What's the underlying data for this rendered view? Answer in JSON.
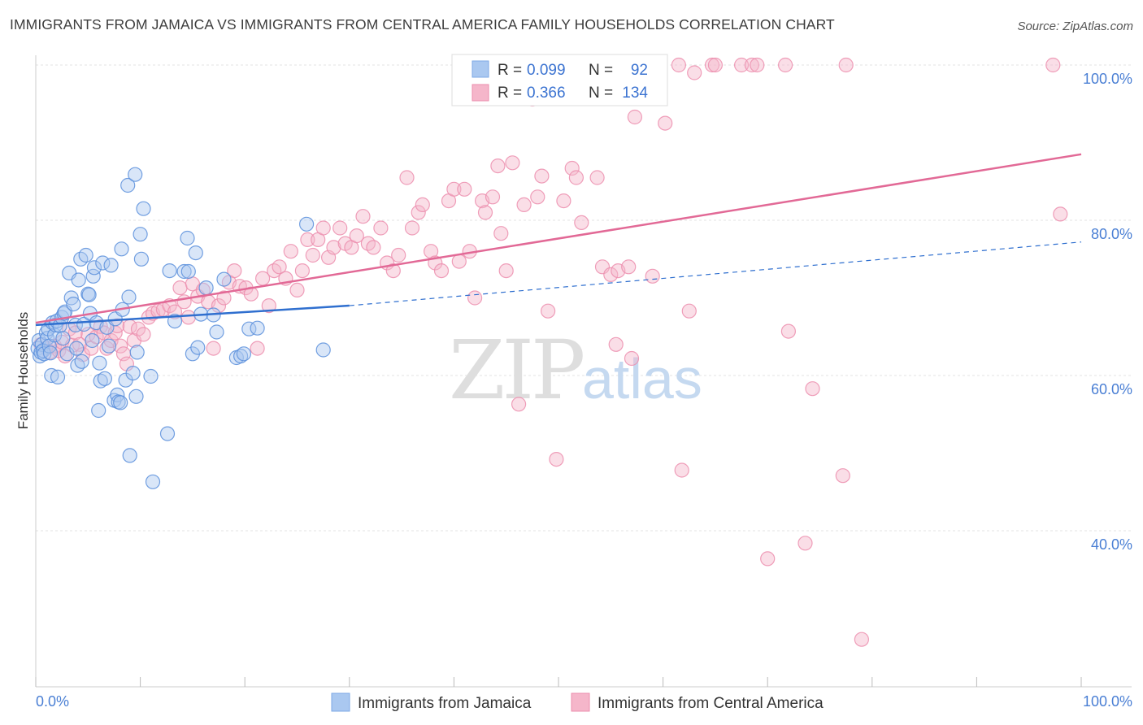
{
  "title": "IMMIGRANTS FROM JAMAICA VS IMMIGRANTS FROM CENTRAL AMERICA FAMILY HOUSEHOLDS CORRELATION CHART",
  "source": "Source: ZipAtlas.com",
  "watermark": {
    "part1": "ZIP",
    "part2": "atlas"
  },
  "legend": {
    "r_label": "R =",
    "n_label": "N =",
    "rows": [
      {
        "r": "0.099",
        "n": "92"
      },
      {
        "r": "0.366",
        "n": "134"
      }
    ]
  },
  "chart_data": {
    "type": "scatter",
    "title": "IMMIGRANTS FROM JAMAICA VS IMMIGRANTS FROM CENTRAL AMERICA FAMILY HOUSEHOLDS CORRELATION CHART",
    "xlabel": "",
    "ylabel": "Family Households",
    "xlim": [
      0,
      100
    ],
    "ylim": [
      22,
      102
    ],
    "x_tick_labels": [
      "0.0%",
      "100.0%"
    ],
    "y_tick_labels": [
      "100.0%",
      "80.0%",
      "60.0%",
      "40.0%"
    ],
    "y_tick_values": [
      100,
      80,
      60,
      40
    ],
    "grid": true,
    "colors": {
      "jamaica_fill": "#aac8f0",
      "jamaica_line": "#2f6fcf",
      "central_fill": "#f5b6ca",
      "central_line": "#e26996"
    },
    "series": [
      {
        "name": "Immigrants from Jamaica",
        "r": 0.099,
        "n": 92,
        "trend": {
          "x0": 0,
          "y0": 66.5,
          "x1": 30,
          "y1": 69.0,
          "dash_to_x": 100,
          "dash_to_y": 77.2
        },
        "points": [
          [
            0.2,
            63.5
          ],
          [
            0.3,
            64.5
          ],
          [
            0.4,
            62.5
          ],
          [
            0.5,
            63
          ],
          [
            0.6,
            64
          ],
          [
            0.7,
            63.2
          ],
          [
            0.8,
            62.8
          ],
          [
            1,
            65.5
          ],
          [
            1.1,
            64.8
          ],
          [
            1.2,
            66
          ],
          [
            1.3,
            63.8
          ],
          [
            1.4,
            62.9
          ],
          [
            1.5,
            60
          ],
          [
            1.6,
            66.8
          ],
          [
            1.8,
            65.2
          ],
          [
            1.9,
            66.5
          ],
          [
            2,
            67
          ],
          [
            2.1,
            59.8
          ],
          [
            2.3,
            66.4
          ],
          [
            2.5,
            67.5
          ],
          [
            2.6,
            64.8
          ],
          [
            2.7,
            68
          ],
          [
            2.8,
            68.2
          ],
          [
            3,
            62.8
          ],
          [
            3.2,
            73.2
          ],
          [
            3.4,
            70
          ],
          [
            3.6,
            69.2
          ],
          [
            3.8,
            66.5
          ],
          [
            3.9,
            63.5
          ],
          [
            4,
            61.3
          ],
          [
            4.1,
            72.3
          ],
          [
            4.3,
            75
          ],
          [
            4.4,
            61.8
          ],
          [
            4.6,
            66.6
          ],
          [
            4.8,
            75.5
          ],
          [
            5,
            70.5
          ],
          [
            5.1,
            70.4
          ],
          [
            5.2,
            68
          ],
          [
            5.4,
            64.5
          ],
          [
            5.5,
            72.8
          ],
          [
            5.6,
            73.9
          ],
          [
            5.8,
            66.8
          ],
          [
            6,
            55.5
          ],
          [
            6.1,
            61.6
          ],
          [
            6.2,
            59.3
          ],
          [
            6.4,
            74.5
          ],
          [
            6.6,
            59.6
          ],
          [
            6.8,
            66.2
          ],
          [
            7,
            63.8
          ],
          [
            7.2,
            74.2
          ],
          [
            7.5,
            56.8
          ],
          [
            7.6,
            67.3
          ],
          [
            7.8,
            57.5
          ],
          [
            7.9,
            56.6
          ],
          [
            8.1,
            56.5
          ],
          [
            8.2,
            76.3
          ],
          [
            8.3,
            68.5
          ],
          [
            8.6,
            59.4
          ],
          [
            8.8,
            84.5
          ],
          [
            8.9,
            70.1
          ],
          [
            9,
            49.7
          ],
          [
            9.3,
            60.3
          ],
          [
            9.5,
            85.9
          ],
          [
            9.6,
            57.3
          ],
          [
            9.7,
            63
          ],
          [
            10,
            78.2
          ],
          [
            10.1,
            75
          ],
          [
            10.3,
            81.5
          ],
          [
            11,
            59.9
          ],
          [
            11.2,
            46.3
          ],
          [
            12.6,
            52.5
          ],
          [
            12.8,
            73.5
          ],
          [
            13.3,
            67
          ],
          [
            14.2,
            73.4
          ],
          [
            14.5,
            77.7
          ],
          [
            14.6,
            73.4
          ],
          [
            15,
            62.8
          ],
          [
            15.3,
            75.8
          ],
          [
            15.5,
            63.6
          ],
          [
            15.8,
            67.9
          ],
          [
            16.3,
            71.3
          ],
          [
            17,
            67.8
          ],
          [
            17.3,
            65.6
          ],
          [
            18,
            72.4
          ],
          [
            19.2,
            62.3
          ],
          [
            19.6,
            62.5
          ],
          [
            19.9,
            62.8
          ],
          [
            20.4,
            66
          ],
          [
            21.2,
            66.1
          ],
          [
            25.9,
            79.5
          ],
          [
            27.5,
            63.3
          ]
        ]
      },
      {
        "name": "Immigrants from Central America",
        "r": 0.366,
        "n": 134,
        "trend": {
          "x0": 0,
          "y0": 66.8,
          "x1": 100,
          "y1": 88.5
        },
        "points": [
          [
            0.5,
            64
          ],
          [
            1,
            63.5
          ],
          [
            1.3,
            63
          ],
          [
            1.8,
            63.8
          ],
          [
            2.2,
            63.2
          ],
          [
            2.5,
            64.3
          ],
          [
            2.8,
            62.5
          ],
          [
            3.2,
            66
          ],
          [
            3.5,
            63.9
          ],
          [
            3.8,
            65.5
          ],
          [
            4.2,
            64
          ],
          [
            4.5,
            62.7
          ],
          [
            5,
            65.3
          ],
          [
            5.3,
            63.5
          ],
          [
            5.8,
            65
          ],
          [
            6.2,
            66.3
          ],
          [
            6.5,
            65.5
          ],
          [
            6.8,
            63.5
          ],
          [
            7.2,
            64.5
          ],
          [
            7.6,
            65.5
          ],
          [
            7.8,
            66.4
          ],
          [
            8.1,
            63.8
          ],
          [
            8.4,
            62.8
          ],
          [
            8.7,
            61.5
          ],
          [
            9,
            66.3
          ],
          [
            9.4,
            64.5
          ],
          [
            9.8,
            66
          ],
          [
            10.3,
            65.3
          ],
          [
            10.8,
            67.5
          ],
          [
            11.2,
            68
          ],
          [
            11.7,
            68.3
          ],
          [
            12.2,
            68.5
          ],
          [
            12.8,
            69
          ],
          [
            13.3,
            68.2
          ],
          [
            13.8,
            71.3
          ],
          [
            14.2,
            69.5
          ],
          [
            14.6,
            67.5
          ],
          [
            15,
            71.8
          ],
          [
            15.5,
            70.2
          ],
          [
            16,
            71
          ],
          [
            16.5,
            69.5
          ],
          [
            17,
            63.5
          ],
          [
            17.5,
            69
          ],
          [
            18,
            70
          ],
          [
            18.5,
            72
          ],
          [
            19,
            73.5
          ],
          [
            19.5,
            71.5
          ],
          [
            20.1,
            71.3
          ],
          [
            20.6,
            70.5
          ],
          [
            21.2,
            63.5
          ],
          [
            21.7,
            72.5
          ],
          [
            22.3,
            69
          ],
          [
            22.8,
            73.5
          ],
          [
            23.3,
            74
          ],
          [
            23.9,
            72.5
          ],
          [
            24.4,
            76
          ],
          [
            25,
            71
          ],
          [
            25.5,
            73.5
          ],
          [
            26,
            77.5
          ],
          [
            26.5,
            75.5
          ],
          [
            27,
            77.5
          ],
          [
            27.5,
            79
          ],
          [
            28,
            75.2
          ],
          [
            28.5,
            76.5
          ],
          [
            29.1,
            79
          ],
          [
            29.6,
            77
          ],
          [
            30.2,
            76.5
          ],
          [
            30.7,
            78
          ],
          [
            31.3,
            80.5
          ],
          [
            31.8,
            77
          ],
          [
            32.3,
            76.5
          ],
          [
            33,
            79
          ],
          [
            33.6,
            74.5
          ],
          [
            34.2,
            73.5
          ],
          [
            34.7,
            75.5
          ],
          [
            35.5,
            85.5
          ],
          [
            36,
            79
          ],
          [
            36.6,
            81
          ],
          [
            37,
            82
          ],
          [
            37.8,
            76
          ],
          [
            38.2,
            74.5
          ],
          [
            38.8,
            73.5
          ],
          [
            39.5,
            82.5
          ],
          [
            40,
            84
          ],
          [
            40.5,
            74.7
          ],
          [
            41,
            84
          ],
          [
            41.5,
            76
          ],
          [
            42,
            70
          ],
          [
            42.7,
            82.5
          ],
          [
            43,
            81
          ],
          [
            43.7,
            83
          ],
          [
            44.2,
            87
          ],
          [
            44.5,
            78.3
          ],
          [
            45,
            73.5
          ],
          [
            45.6,
            87.4
          ],
          [
            46.2,
            56.3
          ],
          [
            46.7,
            82
          ],
          [
            47.5,
            95.6
          ],
          [
            48,
            83
          ],
          [
            48.4,
            85.7
          ],
          [
            49,
            68.3
          ],
          [
            49.8,
            49.2
          ],
          [
            50.5,
            82.5
          ],
          [
            51.3,
            86.7
          ],
          [
            51.7,
            85.5
          ],
          [
            52.2,
            79.7
          ],
          [
            53.7,
            85.5
          ],
          [
            54.2,
            74
          ],
          [
            55,
            73
          ],
          [
            55.5,
            64
          ],
          [
            55.7,
            73.5
          ],
          [
            56.7,
            74
          ],
          [
            57,
            62.2
          ],
          [
            57.3,
            93.3
          ],
          [
            59,
            72.8
          ],
          [
            60.2,
            92.5
          ],
          [
            61.5,
            100
          ],
          [
            61.8,
            47.8
          ],
          [
            62.5,
            68.3
          ],
          [
            63,
            99
          ],
          [
            64.7,
            100
          ],
          [
            65,
            100
          ],
          [
            67.5,
            100
          ],
          [
            68.5,
            100
          ],
          [
            69,
            100
          ],
          [
            70,
            36.4
          ],
          [
            71.7,
            100
          ],
          [
            72,
            65.7
          ],
          [
            73.6,
            38.4
          ],
          [
            74.3,
            58.3
          ],
          [
            77.2,
            47.1
          ],
          [
            77.5,
            100
          ],
          [
            79,
            26
          ],
          [
            97.3,
            100
          ],
          [
            98,
            80.8
          ]
        ]
      }
    ]
  },
  "bottom_legend": [
    {
      "label": "Immigrants from Jamaica"
    },
    {
      "label": "Immigrants from Central America"
    }
  ]
}
